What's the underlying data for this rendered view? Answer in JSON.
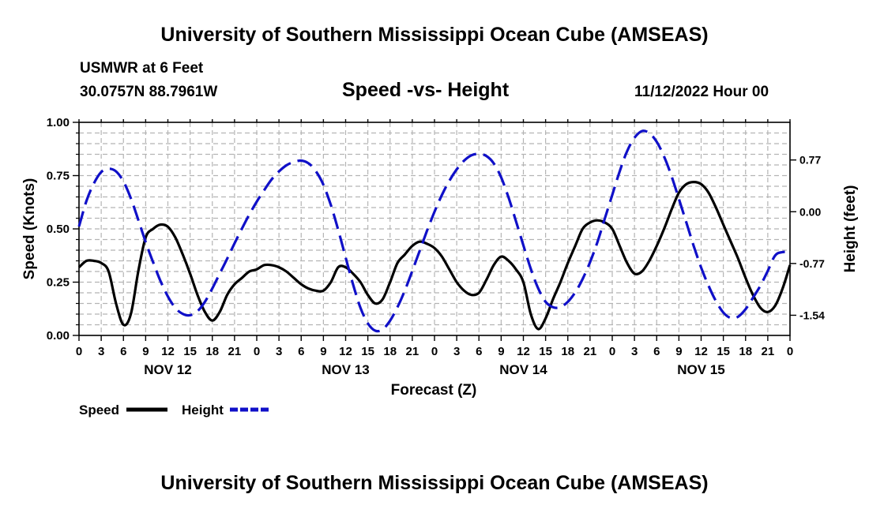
{
  "page": {
    "title_top": "University of Southern Mississippi Ocean Cube (AMSEAS)",
    "title_bottom": "University of Southern Mississippi Ocean Cube (AMSEAS)",
    "station": "USMWR at 6 Feet",
    "coordinates": "30.0757N  88.7961W",
    "chart_title": "Speed -vs- Height",
    "run_time": "11/12/2022 Hour 00"
  },
  "chart_data": {
    "type": "line",
    "title": "Speed -vs- Height",
    "xlabel": "Forecast (Z)",
    "ylabel": "Speed (Knots)",
    "y2label": "Height (feet)",
    "xlim": [
      0,
      96
    ],
    "ylim": [
      0,
      1.0
    ],
    "y2lim": [
      -1.84,
      1.33
    ],
    "x_tick_values": [
      0,
      3,
      6,
      9,
      12,
      15,
      18,
      21,
      24,
      27,
      30,
      33,
      36,
      39,
      42,
      45,
      48,
      51,
      54,
      57,
      60,
      63,
      66,
      69,
      72,
      75,
      78,
      81,
      84,
      87,
      90,
      93,
      96
    ],
    "x_tick_labels": [
      "0",
      "3",
      "6",
      "9",
      "12",
      "15",
      "18",
      "21",
      "0",
      "3",
      "6",
      "9",
      "12",
      "15",
      "18",
      "21",
      "0",
      "3",
      "6",
      "9",
      "12",
      "15",
      "18",
      "21",
      "0",
      "3",
      "6",
      "9",
      "12",
      "15",
      "18",
      "21",
      "0"
    ],
    "day_labels": [
      {
        "label": "NOV 12",
        "x": 12
      },
      {
        "label": "NOV 13",
        "x": 36
      },
      {
        "label": "NOV 14",
        "x": 60
      },
      {
        "label": "NOV 15",
        "x": 84
      }
    ],
    "y_ticks": [
      0.0,
      0.25,
      0.5,
      0.75,
      1.0
    ],
    "y_tick_labels": [
      "0.00",
      "0.25",
      "0.50",
      "0.75",
      "1.00"
    ],
    "y2_ticks": [
      -1.54,
      -0.77,
      0.0,
      0.77
    ],
    "y2_tick_labels": [
      "-1.54",
      "-0.77",
      "0.00",
      "0.77"
    ],
    "grid": true,
    "legend": [
      {
        "label": "Speed",
        "color": "#000000",
        "style": "solid"
      },
      {
        "label": "Height",
        "color": "#1010c8",
        "style": "dashed"
      }
    ],
    "series": [
      {
        "name": "Speed",
        "axis": "left",
        "color": "#000000",
        "style": "solid",
        "points": [
          [
            0,
            0.32
          ],
          [
            1,
            0.35
          ],
          [
            2,
            0.35
          ],
          [
            3,
            0.34
          ],
          [
            4,
            0.3
          ],
          [
            5,
            0.15
          ],
          [
            6,
            0.05
          ],
          [
            7,
            0.1
          ],
          [
            8,
            0.3
          ],
          [
            9,
            0.46
          ],
          [
            10,
            0.5
          ],
          [
            11,
            0.52
          ],
          [
            12,
            0.51
          ],
          [
            13,
            0.46
          ],
          [
            14,
            0.38
          ],
          [
            15,
            0.29
          ],
          [
            16,
            0.19
          ],
          [
            17,
            0.11
          ],
          [
            18,
            0.07
          ],
          [
            19,
            0.11
          ],
          [
            20,
            0.19
          ],
          [
            21,
            0.24
          ],
          [
            22,
            0.27
          ],
          [
            23,
            0.3
          ],
          [
            24,
            0.31
          ],
          [
            25,
            0.33
          ],
          [
            26,
            0.33
          ],
          [
            27,
            0.32
          ],
          [
            28,
            0.3
          ],
          [
            29,
            0.27
          ],
          [
            30,
            0.24
          ],
          [
            31,
            0.22
          ],
          [
            32,
            0.21
          ],
          [
            33,
            0.21
          ],
          [
            34,
            0.25
          ],
          [
            35,
            0.32
          ],
          [
            36,
            0.32
          ],
          [
            37,
            0.29
          ],
          [
            38,
            0.25
          ],
          [
            39,
            0.19
          ],
          [
            40,
            0.15
          ],
          [
            41,
            0.17
          ],
          [
            42,
            0.25
          ],
          [
            43,
            0.34
          ],
          [
            44,
            0.38
          ],
          [
            45,
            0.42
          ],
          [
            46,
            0.44
          ],
          [
            47,
            0.43
          ],
          [
            48,
            0.41
          ],
          [
            49,
            0.37
          ],
          [
            50,
            0.31
          ],
          [
            51,
            0.25
          ],
          [
            52,
            0.21
          ],
          [
            53,
            0.19
          ],
          [
            54,
            0.2
          ],
          [
            55,
            0.26
          ],
          [
            56,
            0.33
          ],
          [
            57,
            0.37
          ],
          [
            58,
            0.35
          ],
          [
            59,
            0.31
          ],
          [
            60,
            0.25
          ],
          [
            61,
            0.1
          ],
          [
            62,
            0.03
          ],
          [
            63,
            0.08
          ],
          [
            64,
            0.17
          ],
          [
            65,
            0.25
          ],
          [
            66,
            0.34
          ],
          [
            67,
            0.42
          ],
          [
            68,
            0.5
          ],
          [
            69,
            0.53
          ],
          [
            70,
            0.54
          ],
          [
            71,
            0.53
          ],
          [
            72,
            0.5
          ],
          [
            73,
            0.42
          ],
          [
            74,
            0.34
          ],
          [
            75,
            0.29
          ],
          [
            76,
            0.3
          ],
          [
            77,
            0.35
          ],
          [
            78,
            0.42
          ],
          [
            79,
            0.5
          ],
          [
            80,
            0.59
          ],
          [
            81,
            0.67
          ],
          [
            82,
            0.71
          ],
          [
            83,
            0.72
          ],
          [
            84,
            0.71
          ],
          [
            85,
            0.67
          ],
          [
            86,
            0.6
          ],
          [
            87,
            0.52
          ],
          [
            88,
            0.44
          ],
          [
            89,
            0.36
          ],
          [
            90,
            0.27
          ],
          [
            91,
            0.19
          ],
          [
            92,
            0.13
          ],
          [
            93,
            0.11
          ],
          [
            94,
            0.14
          ],
          [
            95,
            0.22
          ],
          [
            96,
            0.33
          ]
        ]
      },
      {
        "name": "Height",
        "axis": "right",
        "color": "#1010c8",
        "style": "dashed",
        "points": [
          [
            0,
            -0.22
          ],
          [
            1,
            0.16
          ],
          [
            2,
            0.42
          ],
          [
            3,
            0.59
          ],
          [
            4,
            0.64
          ],
          [
            5,
            0.6
          ],
          [
            6,
            0.45
          ],
          [
            7,
            0.2
          ],
          [
            8,
            -0.12
          ],
          [
            9,
            -0.45
          ],
          [
            10,
            -0.75
          ],
          [
            11,
            -1.03
          ],
          [
            12,
            -1.26
          ],
          [
            13,
            -1.43
          ],
          [
            14,
            -1.52
          ],
          [
            15,
            -1.54
          ],
          [
            16,
            -1.48
          ],
          [
            17,
            -1.34
          ],
          [
            18,
            -1.14
          ],
          [
            19,
            -0.92
          ],
          [
            20,
            -0.7
          ],
          [
            21,
            -0.47
          ],
          [
            22,
            -0.25
          ],
          [
            23,
            -0.04
          ],
          [
            24,
            0.15
          ],
          [
            25,
            0.32
          ],
          [
            26,
            0.48
          ],
          [
            27,
            0.6
          ],
          [
            28,
            0.69
          ],
          [
            29,
            0.74
          ],
          [
            30,
            0.76
          ],
          [
            31,
            0.72
          ],
          [
            32,
            0.6
          ],
          [
            33,
            0.4
          ],
          [
            34,
            0.1
          ],
          [
            35,
            -0.27
          ],
          [
            36,
            -0.68
          ],
          [
            37,
            -1.08
          ],
          [
            38,
            -1.43
          ],
          [
            39,
            -1.66
          ],
          [
            40,
            -1.77
          ],
          [
            41,
            -1.75
          ],
          [
            42,
            -1.62
          ],
          [
            43,
            -1.42
          ],
          [
            44,
            -1.17
          ],
          [
            45,
            -0.88
          ],
          [
            46,
            -0.58
          ],
          [
            47,
            -0.28
          ],
          [
            48,
            0.0
          ],
          [
            49,
            0.25
          ],
          [
            50,
            0.46
          ],
          [
            51,
            0.63
          ],
          [
            52,
            0.76
          ],
          [
            53,
            0.84
          ],
          [
            54,
            0.86
          ],
          [
            55,
            0.83
          ],
          [
            56,
            0.72
          ],
          [
            57,
            0.51
          ],
          [
            58,
            0.21
          ],
          [
            59,
            -0.14
          ],
          [
            60,
            -0.5
          ],
          [
            61,
            -0.85
          ],
          [
            62,
            -1.14
          ],
          [
            63,
            -1.34
          ],
          [
            64,
            -1.42
          ],
          [
            65,
            -1.42
          ],
          [
            66,
            -1.34
          ],
          [
            67,
            -1.2
          ],
          [
            68,
            -1.0
          ],
          [
            69,
            -0.75
          ],
          [
            70,
            -0.45
          ],
          [
            71,
            -0.1
          ],
          [
            72,
            0.25
          ],
          [
            73,
            0.6
          ],
          [
            74,
            0.9
          ],
          [
            75,
            1.1
          ],
          [
            76,
            1.2
          ],
          [
            77,
            1.17
          ],
          [
            78,
            1.04
          ],
          [
            79,
            0.82
          ],
          [
            80,
            0.53
          ],
          [
            81,
            0.19
          ],
          [
            82,
            -0.16
          ],
          [
            83,
            -0.51
          ],
          [
            84,
            -0.83
          ],
          [
            85,
            -1.1
          ],
          [
            86,
            -1.33
          ],
          [
            87,
            -1.5
          ],
          [
            88,
            -1.58
          ],
          [
            89,
            -1.56
          ],
          [
            90,
            -1.45
          ],
          [
            91,
            -1.28
          ],
          [
            92,
            -1.1
          ],
          [
            93,
            -0.88
          ],
          [
            94,
            -0.65
          ],
          [
            95,
            -0.6
          ],
          [
            96,
            -0.6
          ]
        ]
      }
    ]
  }
}
